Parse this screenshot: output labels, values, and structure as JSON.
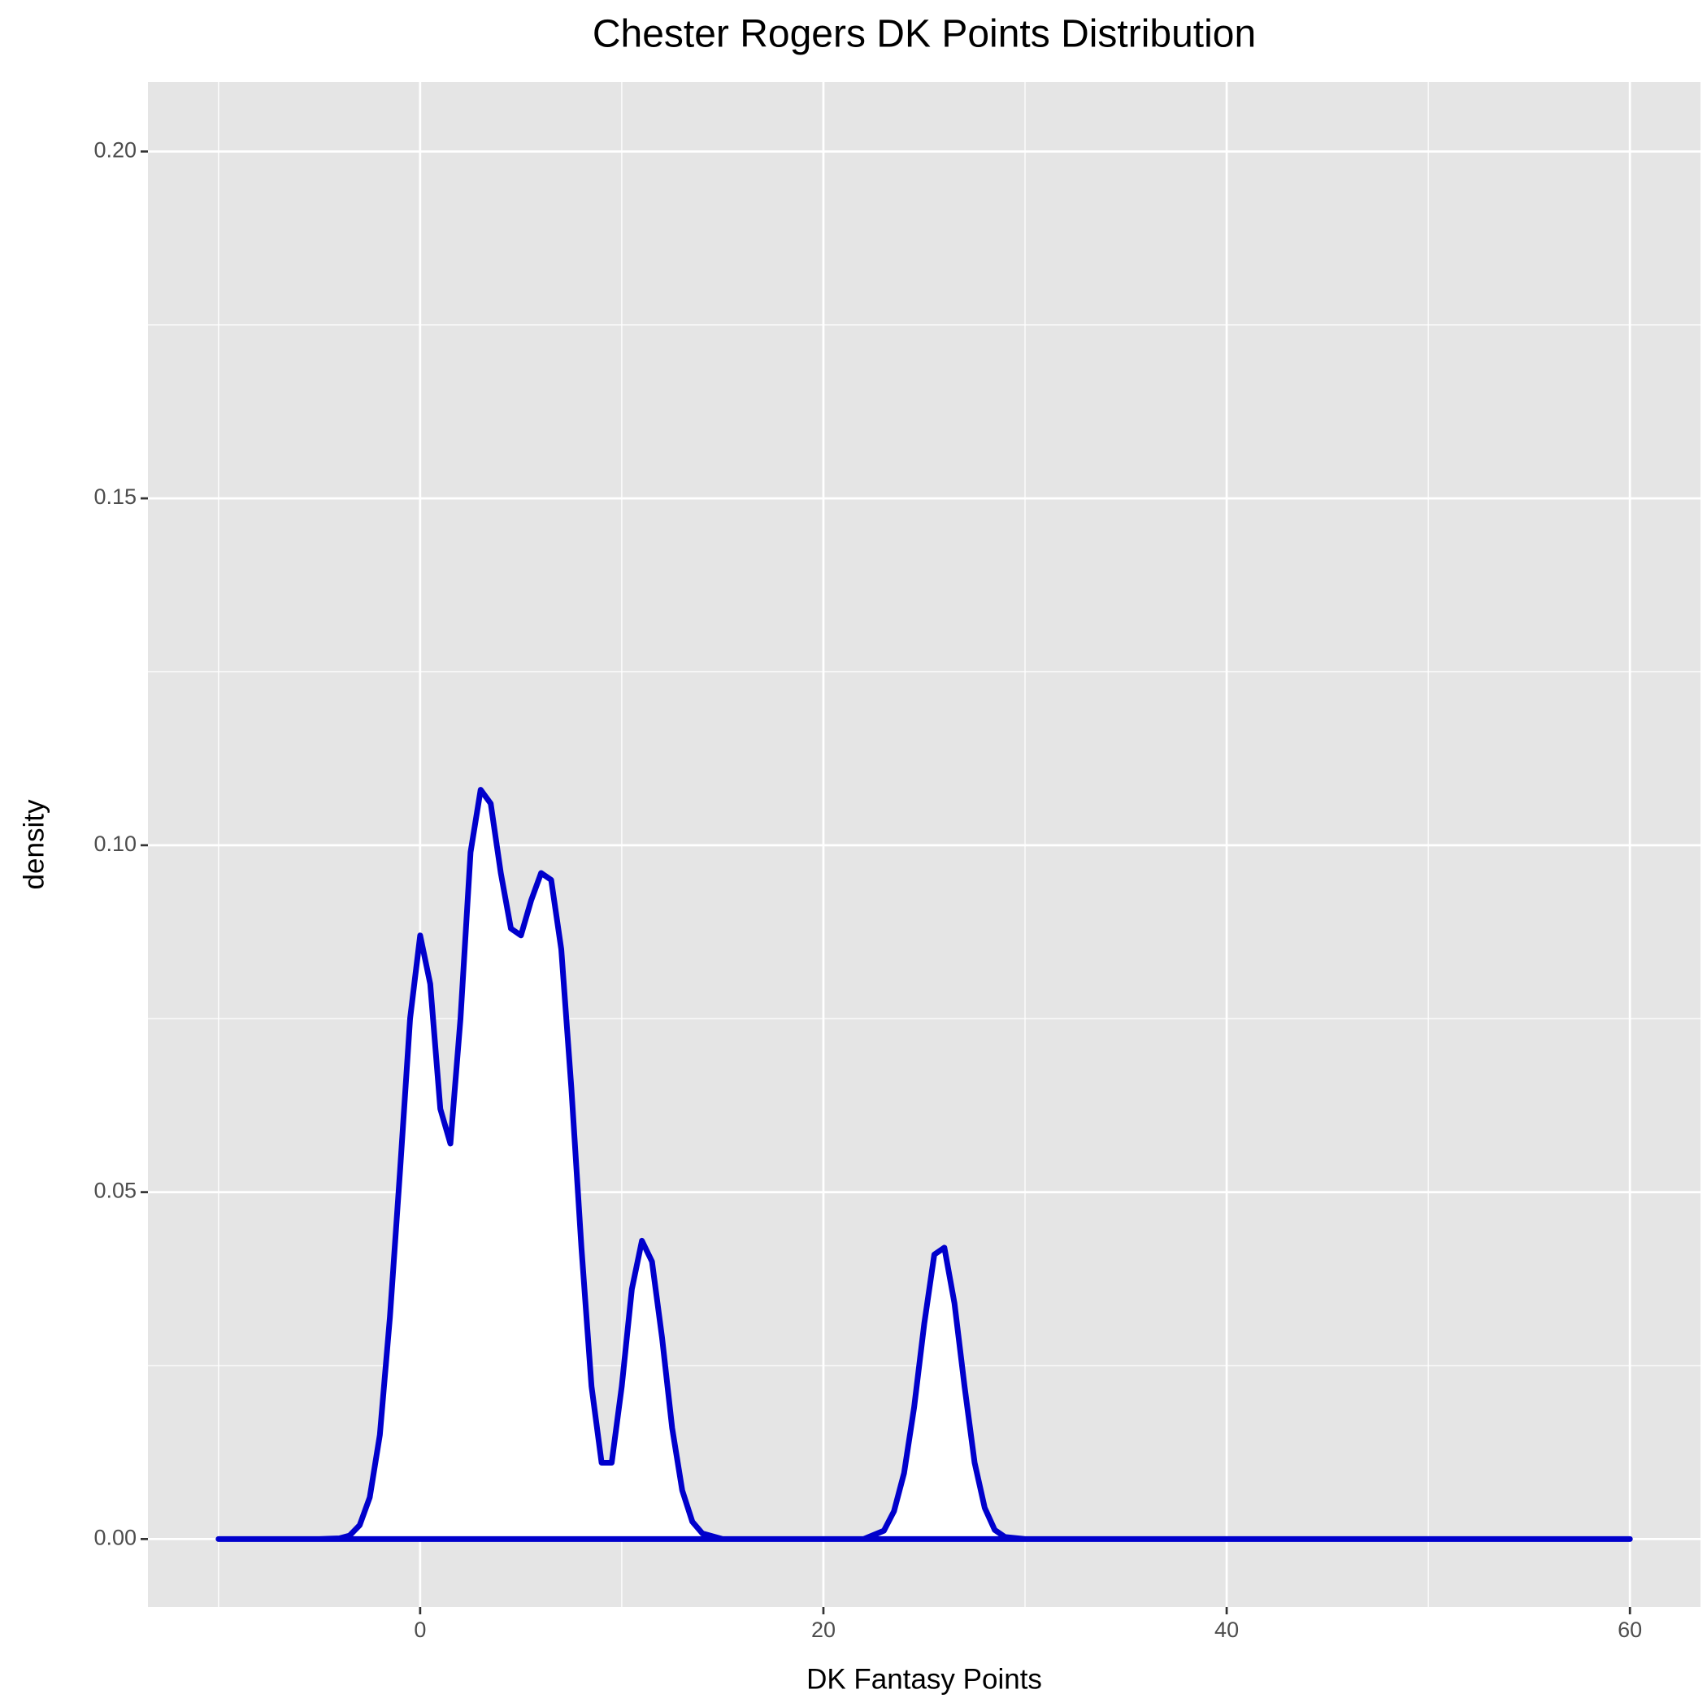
{
  "chart_data": {
    "type": "area",
    "title": "Chester Rogers DK Points Distribution",
    "x_label": "DK Fantasy Points",
    "y_label": "density",
    "x": [
      -10,
      -5,
      -4,
      -3.5,
      -3,
      -2.5,
      -2,
      -1.5,
      -1,
      -0.5,
      0,
      0.5,
      1,
      1.5,
      2,
      2.5,
      3,
      3.5,
      4,
      4.5,
      5,
      5.5,
      6,
      6.5,
      7,
      7.5,
      8,
      8.5,
      9,
      9.5,
      10,
      10.5,
      11,
      11.5,
      12,
      12.5,
      13,
      13.5,
      14,
      15,
      20,
      22,
      23,
      23.5,
      24,
      24.5,
      25,
      25.5,
      26,
      26.5,
      27,
      27.5,
      28,
      28.5,
      29,
      30,
      60
    ],
    "values": [
      0,
      0,
      0.0001,
      0.0005,
      0.002,
      0.006,
      0.015,
      0.032,
      0.053,
      0.075,
      0.087,
      0.08,
      0.062,
      0.057,
      0.075,
      0.099,
      0.108,
      0.106,
      0.096,
      0.088,
      0.087,
      0.092,
      0.096,
      0.095,
      0.085,
      0.065,
      0.042,
      0.022,
      0.011,
      0.011,
      0.022,
      0.036,
      0.043,
      0.04,
      0.029,
      0.016,
      0.007,
      0.0025,
      0.0008,
      0,
      0,
      0,
      0.0012,
      0.004,
      0.0095,
      0.019,
      0.031,
      0.041,
      0.042,
      0.034,
      0.022,
      0.011,
      0.0045,
      0.0013,
      0.0003,
      0,
      0
    ],
    "color": "#0000cc",
    "fill": "#ffffff",
    "xlim": [
      -13.5,
      63.5
    ],
    "xticks": [
      0,
      20,
      40,
      60
    ],
    "x_minor": [
      -10,
      10,
      30,
      50
    ],
    "ylim": [
      -0.0098,
      0.21
    ],
    "yticks": [
      {
        "value": 0,
        "label": "0.00"
      },
      {
        "value": 0.05,
        "label": "0.05"
      },
      {
        "value": 0.1,
        "label": "0.10"
      },
      {
        "value": 0.15,
        "label": "0.15"
      },
      {
        "value": 0.2,
        "label": "0.20"
      }
    ],
    "y_minor": [
      0.025,
      0.075,
      0.125,
      0.175
    ],
    "grid": true,
    "background": "#e5e5e5"
  }
}
